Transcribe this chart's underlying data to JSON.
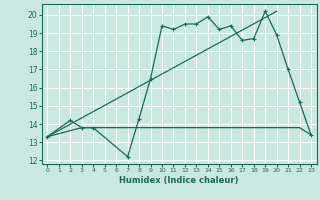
{
  "xlabel": "Humidex (Indice chaleur)",
  "ylabel": "",
  "background_color": "#c8e8e0",
  "grid_color": "#ffffff",
  "line_color": "#1a6b5a",
  "xlim": [
    -0.5,
    23.5
  ],
  "ylim": [
    11.8,
    20.6
  ],
  "yticks": [
    12,
    13,
    14,
    15,
    16,
    17,
    18,
    19,
    20
  ],
  "xticks": [
    0,
    1,
    2,
    3,
    4,
    5,
    6,
    7,
    8,
    9,
    10,
    11,
    12,
    13,
    14,
    15,
    16,
    17,
    18,
    19,
    20,
    21,
    22,
    23
  ],
  "line1_x": [
    0,
    2,
    3,
    4,
    7,
    8,
    9,
    10,
    11,
    12,
    13,
    14,
    15,
    16,
    17,
    18,
    19,
    20,
    21,
    22,
    23
  ],
  "line1_y": [
    13.3,
    14.2,
    13.8,
    13.8,
    12.2,
    14.3,
    16.5,
    19.4,
    19.2,
    19.5,
    19.5,
    19.9,
    19.2,
    19.4,
    18.6,
    18.7,
    20.2,
    18.9,
    17.0,
    15.2,
    13.4
  ],
  "line2_x": [
    0,
    3,
    4,
    5,
    6,
    7,
    8,
    9,
    10,
    11,
    12,
    13,
    14,
    15,
    16,
    17,
    18,
    19,
    20,
    21,
    22,
    23
  ],
  "line2_y": [
    13.3,
    13.8,
    13.8,
    13.8,
    13.8,
    13.8,
    13.8,
    13.8,
    13.8,
    13.8,
    13.8,
    13.8,
    13.8,
    13.8,
    13.8,
    13.8,
    13.8,
    13.8,
    13.8,
    13.8,
    13.8,
    13.4
  ],
  "line3_x": [
    0,
    20
  ],
  "line3_y": [
    13.3,
    20.2
  ]
}
